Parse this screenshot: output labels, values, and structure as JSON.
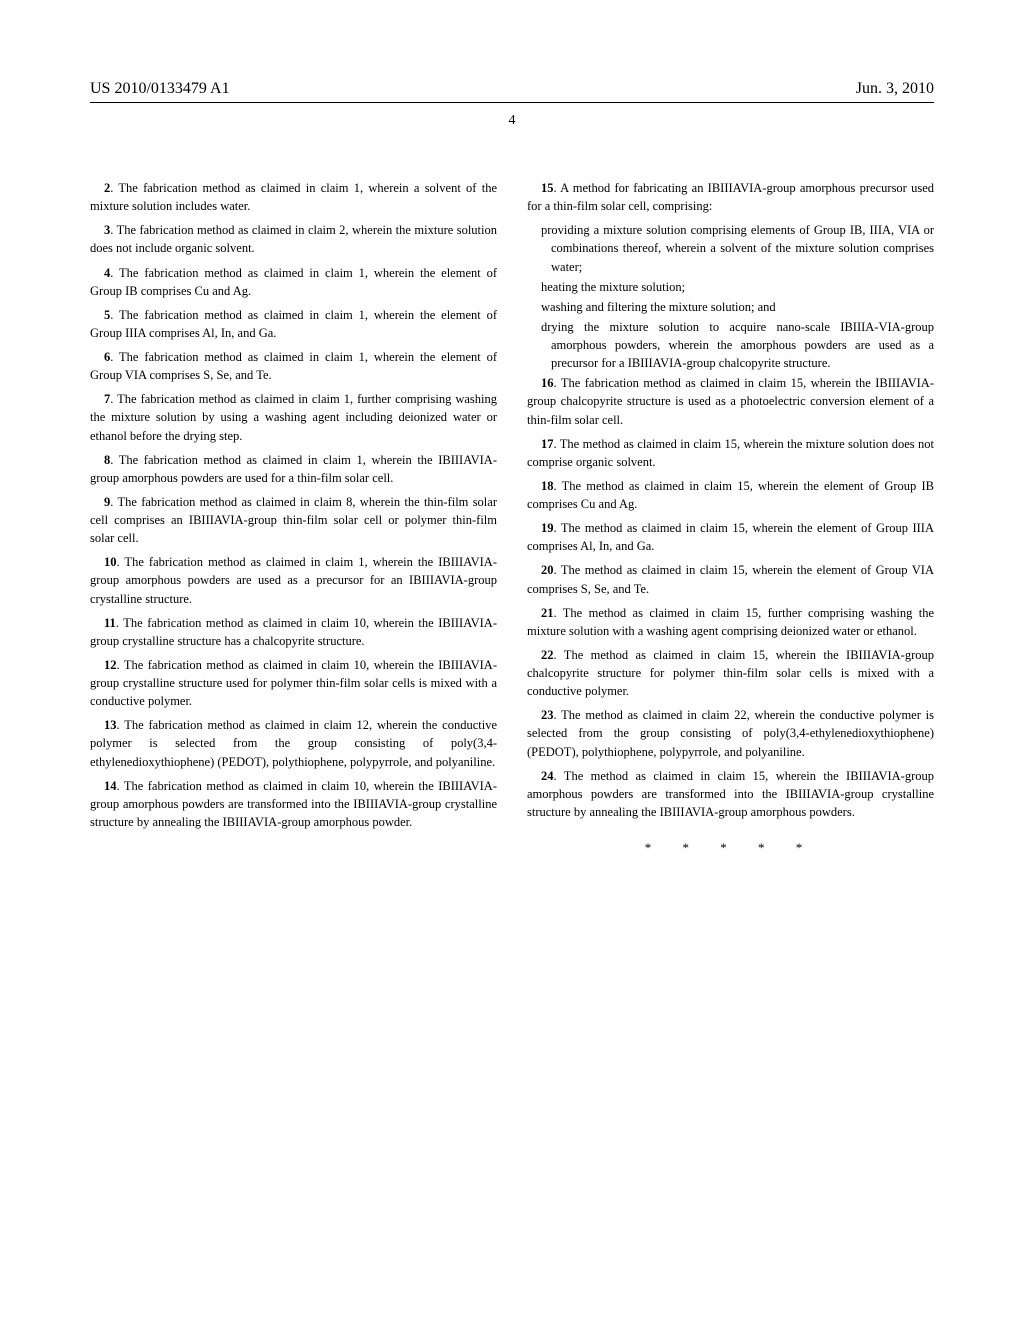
{
  "header": {
    "publication_number": "US 2010/0133479 A1",
    "publication_date": "Jun. 3, 2010"
  },
  "page_number": "4",
  "columns": {
    "left": {
      "claims": [
        {
          "num": "2",
          "text": ". The fabrication method as claimed in claim 1, wherein a solvent of the mixture solution includes water."
        },
        {
          "num": "3",
          "text": ". The fabrication method as claimed in claim 2, wherein the mixture solution does not include organic solvent."
        },
        {
          "num": "4",
          "text": ". The fabrication method as claimed in claim 1, wherein the element of Group IB comprises Cu and Ag."
        },
        {
          "num": "5",
          "text": ". The fabrication method as claimed in claim 1, wherein the element of Group IIIA comprises Al, In, and Ga."
        },
        {
          "num": "6",
          "text": ". The fabrication method as claimed in claim 1, wherein the element of Group VIA comprises S, Se, and Te."
        },
        {
          "num": "7",
          "text": ". The fabrication method as claimed in claim 1, further comprising washing the mixture solution by using a washing agent including deionized water or ethanol before the drying step."
        },
        {
          "num": "8",
          "text": ". The fabrication method as claimed in claim 1, wherein the IBIIIAVIA-group amorphous powders are used for a thin-film solar cell."
        },
        {
          "num": "9",
          "text": ". The fabrication method as claimed in claim 8, wherein the thin-film solar cell comprises an IBIIIAVIA-group thin-film solar cell or polymer thin-film solar cell."
        },
        {
          "num": "10",
          "text": ". The fabrication method as claimed in claim 1, wherein the IBIIIAVIA-group amorphous powders are used as a precursor for an IBIIIAVIA-group crystalline structure."
        },
        {
          "num": "11",
          "text": ". The fabrication method as claimed in claim 10, wherein the IBIIIAVIA-group crystalline structure has a chalcopyrite structure."
        },
        {
          "num": "12",
          "text": ". The fabrication method as claimed in claim 10, wherein the IBIIIAVIA-group crystalline structure used for polymer thin-film solar cells is mixed with a conductive polymer."
        },
        {
          "num": "13",
          "text": ". The fabrication method as claimed in claim 12, wherein the conductive polymer is selected from the group consisting of poly(3,4-ethylenedioxythiophene) (PEDOT), polythiophene, polypyrrole, and polyaniline."
        },
        {
          "num": "14",
          "text": ". The fabrication method as claimed in claim 10, wherein the IBIIIAVIA-group amorphous powders are transformed into the IBIIIAVIA-group crystalline structure by annealing the IBIIIAVIA-group amorphous powder."
        }
      ]
    },
    "right": {
      "claim15": {
        "num": "15",
        "intro": ". A method for fabricating an IBIIIAVIA-group amorphous precursor used for a thin-film solar cell, comprising:",
        "items": [
          "providing a mixture solution comprising elements of Group IB, IIIA, VIA or combinations thereof, wherein a solvent of the mixture solution comprises water;",
          "heating the mixture solution;",
          "washing and filtering the mixture solution; and",
          "drying the mixture solution to acquire nano-scale IBIIIA-VIA-group amorphous powders, wherein the amorphous powders are used as a precursor for a IBIIIAVIA-group chalcopyrite structure."
        ]
      },
      "claims": [
        {
          "num": "16",
          "text": ". The fabrication method as claimed in claim 15, wherein the IBIIIAVIA-group chalcopyrite structure is used as a photoelectric conversion element of a thin-film solar cell."
        },
        {
          "num": "17",
          "text": ". The method as claimed in claim 15, wherein the mixture solution does not comprise organic solvent."
        },
        {
          "num": "18",
          "text": ". The method as claimed in claim 15, wherein the element of Group IB comprises Cu and Ag."
        },
        {
          "num": "19",
          "text": ". The method as claimed in claim 15, wherein the element of Group IIIA comprises Al, In, and Ga."
        },
        {
          "num": "20",
          "text": ". The method as claimed in claim 15, wherein the element of Group VIA comprises S, Se, and Te."
        },
        {
          "num": "21",
          "text": ". The method as claimed in claim 15, further comprising washing the mixture solution with a washing agent comprising deionized water or ethanol."
        },
        {
          "num": "22",
          "text": ". The method as claimed in claim 15, wherein the IBIIIAVIA-group chalcopyrite structure for polymer thin-film solar cells is mixed with a conductive polymer."
        },
        {
          "num": "23",
          "text": ". The method as claimed in claim 22, wherein the conductive polymer is selected from the group consisting of poly(3,4-ethylenedioxythiophene) (PEDOT), polythiophene, polypyrrole, and polyaniline."
        },
        {
          "num": "24",
          "text": ". The method as claimed in claim 15, wherein the IBIIIAVIA-group amorphous powders are transformed into the IBIIIAVIA-group crystalline structure by annealing the IBIIIAVIA-group amorphous powders."
        }
      ]
    }
  },
  "end_marks": "* * * * *"
}
